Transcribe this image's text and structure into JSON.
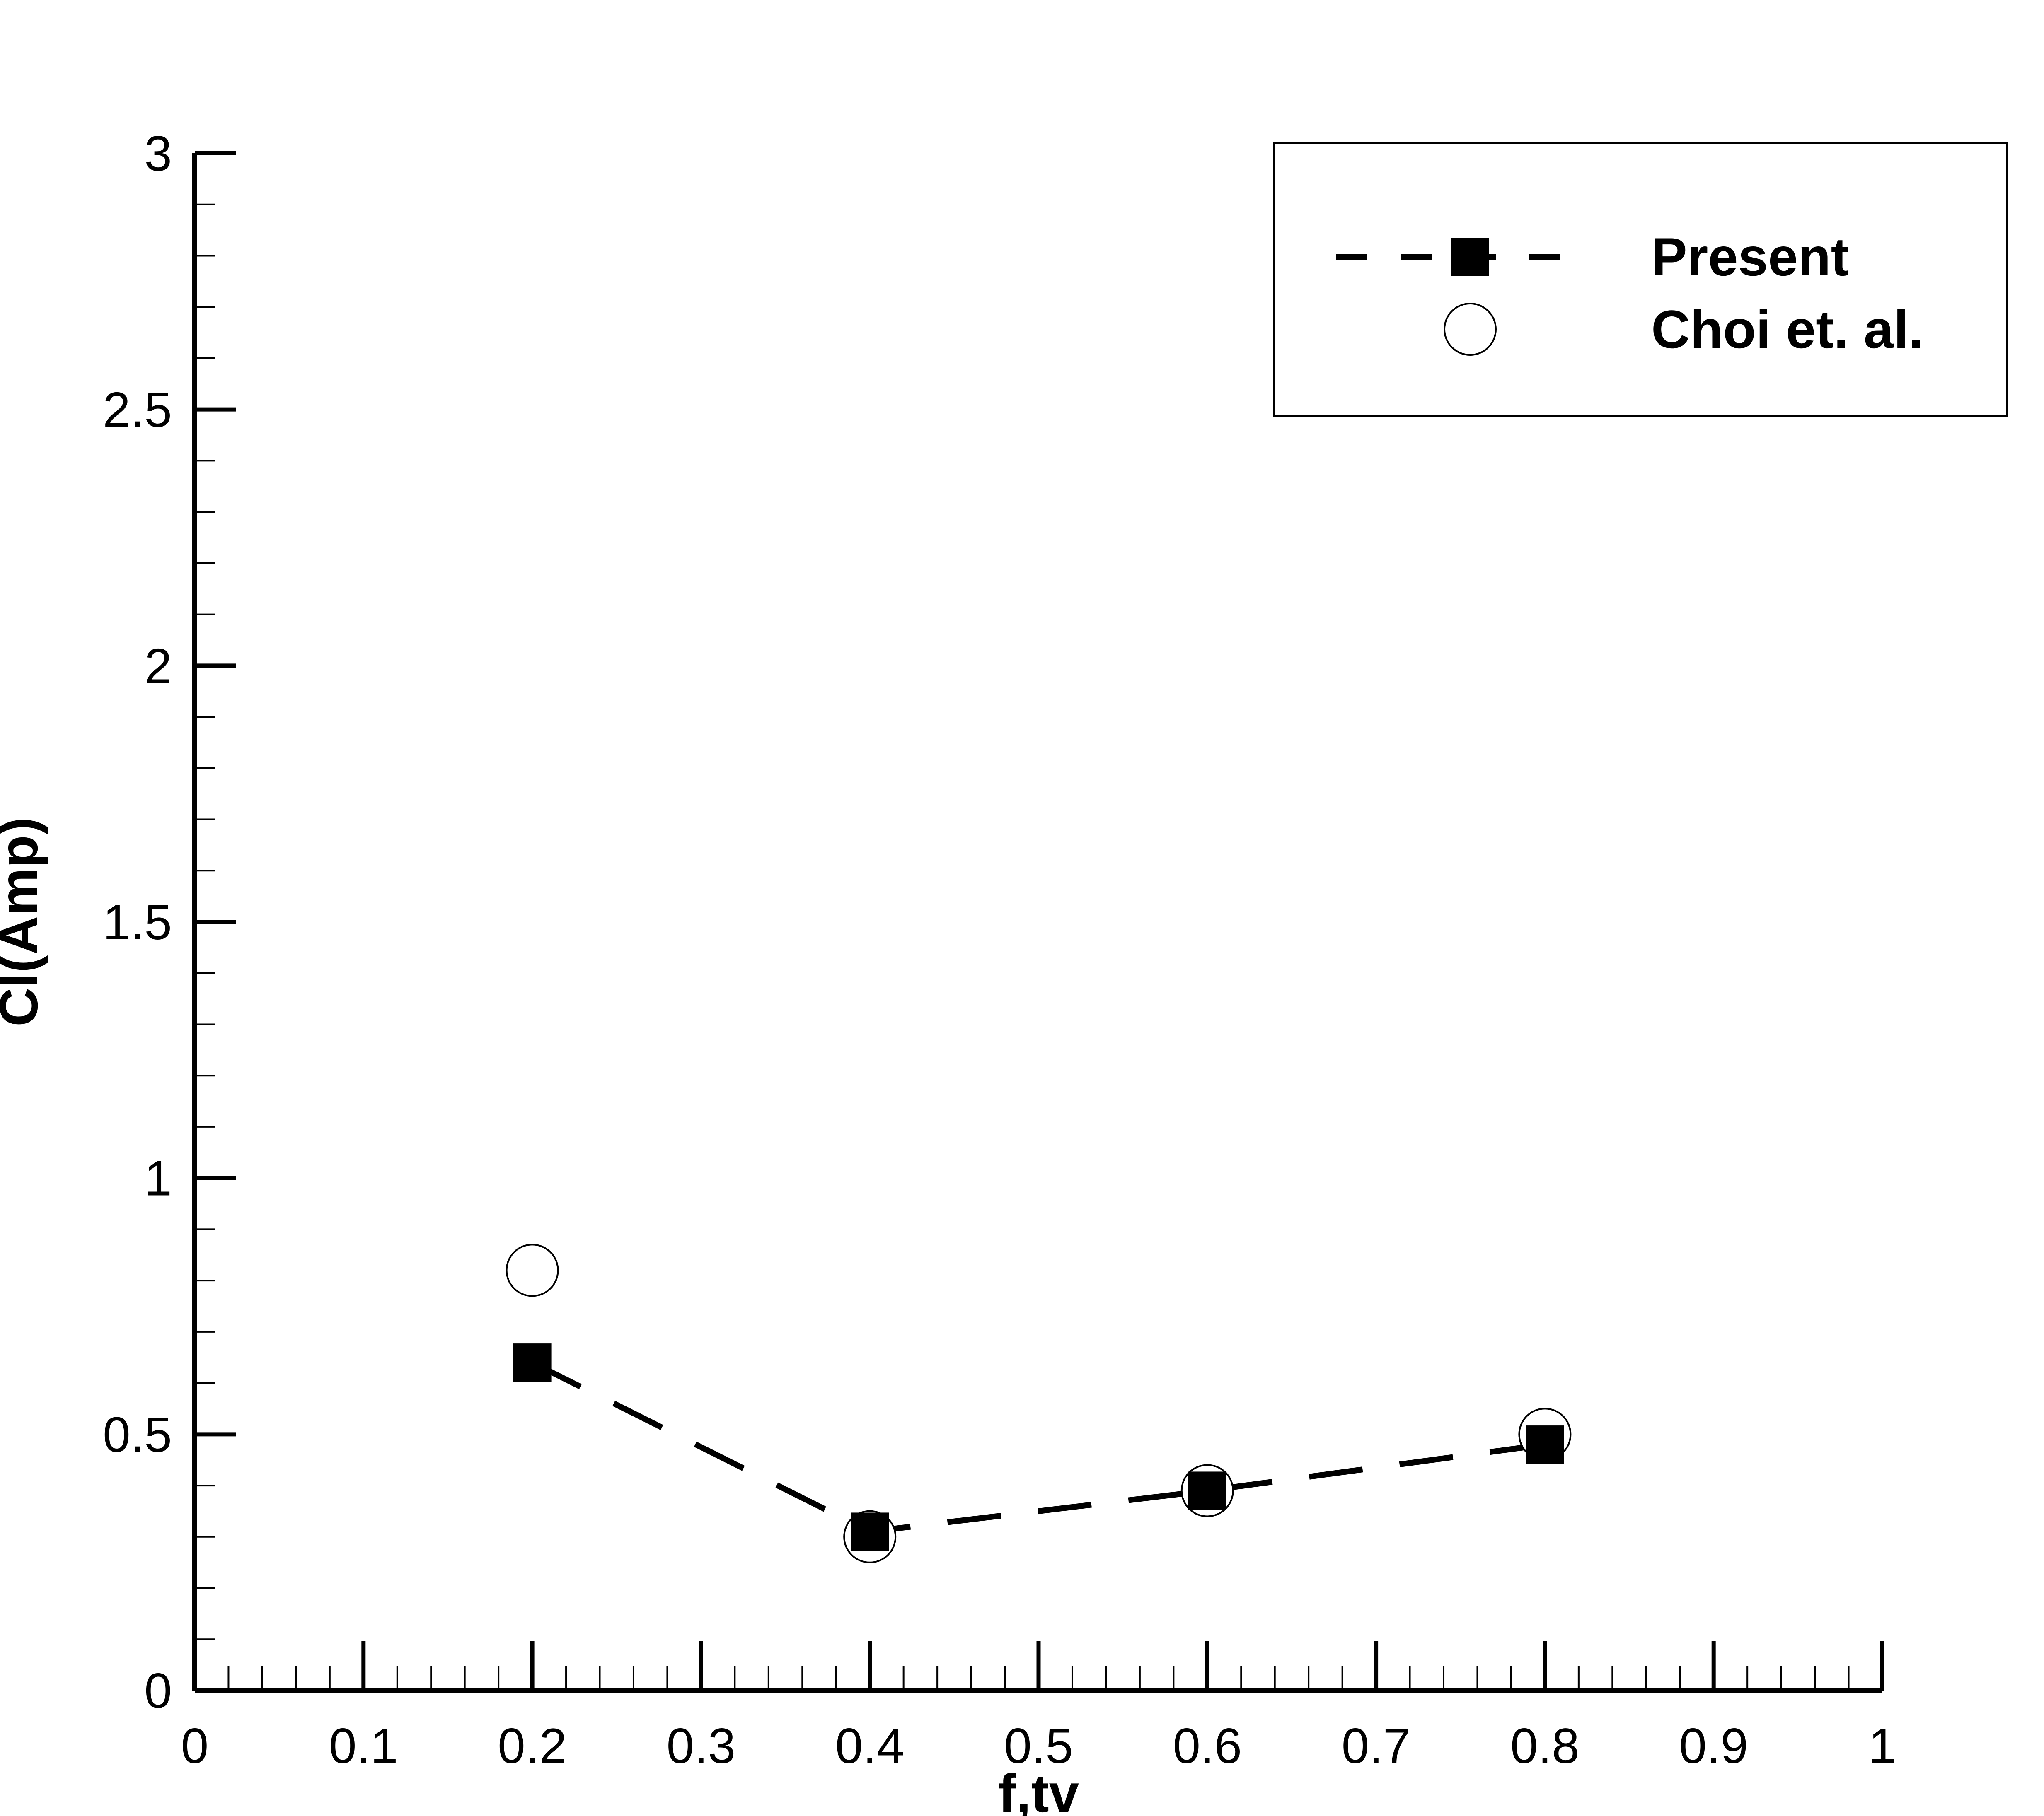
{
  "chart_data": {
    "type": "scatter",
    "title": "",
    "xlabel": "f,tv",
    "ylabel": "Cl(Amp)",
    "xlim": [
      0,
      1
    ],
    "ylim": [
      0,
      3
    ],
    "grid": false,
    "legend_position": "top-right",
    "x_ticks": [
      {
        "value": 0,
        "label": "0"
      },
      {
        "value": 0.1,
        "label": "0.1"
      },
      {
        "value": 0.2,
        "label": "0.2"
      },
      {
        "value": 0.3,
        "label": "0.3"
      },
      {
        "value": 0.4,
        "label": "0.4"
      },
      {
        "value": 0.5,
        "label": "0.5"
      },
      {
        "value": 0.6,
        "label": "0.6"
      },
      {
        "value": 0.7,
        "label": "0.7"
      },
      {
        "value": 0.8,
        "label": "0.8"
      },
      {
        "value": 0.9,
        "label": "0.9"
      },
      {
        "value": 1,
        "label": "1"
      }
    ],
    "y_ticks": [
      {
        "value": 0,
        "label": "0"
      },
      {
        "value": 0.5,
        "label": "0.5"
      },
      {
        "value": 1,
        "label": "1"
      },
      {
        "value": 1.5,
        "label": "1.5"
      },
      {
        "value": 2,
        "label": "2"
      },
      {
        "value": 2.5,
        "label": "2.5"
      },
      {
        "value": 3,
        "label": "3"
      }
    ],
    "series": [
      {
        "name": "Present",
        "style": "dashed-line-filled-square",
        "color": "#000000",
        "x": [
          0.2,
          0.4,
          0.6,
          0.8
        ],
        "y": [
          0.64,
          0.31,
          0.39,
          0.48
        ]
      },
      {
        "name": "Choi et. al.",
        "style": "open-circle",
        "color": "#000000",
        "x": [
          0.2,
          0.4,
          0.6,
          0.8
        ],
        "y": [
          0.82,
          0.3,
          0.39,
          0.5
        ]
      }
    ]
  }
}
